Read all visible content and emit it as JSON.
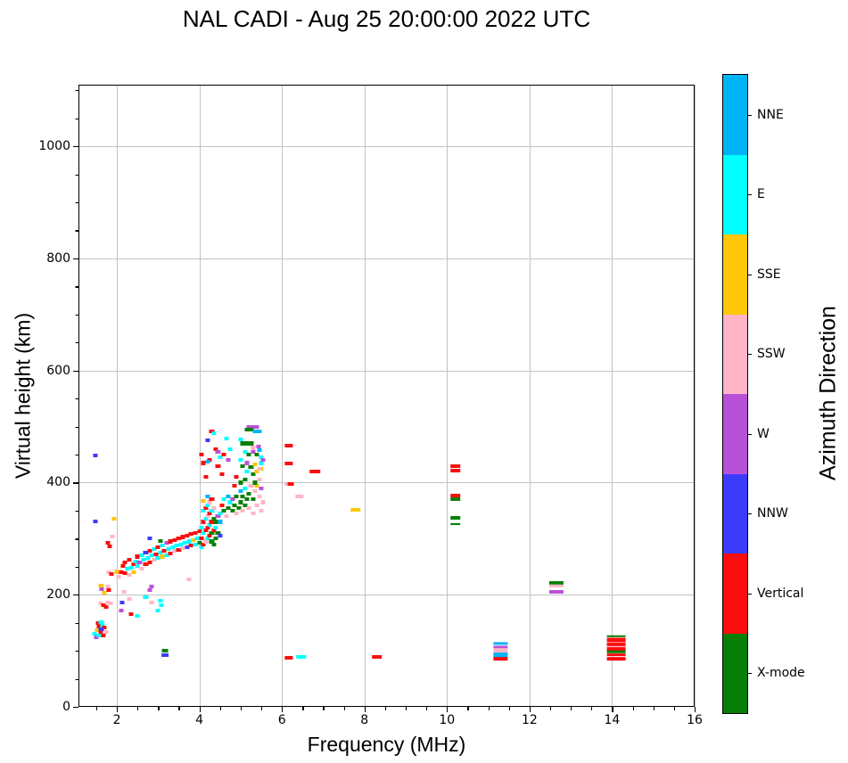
{
  "chart_data": {
    "type": "scatter",
    "title": "NAL CADI - Aug 25 20:00:00 2022 UTC",
    "xlabel": "Frequency (MHz)",
    "ylabel": "Virtual height (km)",
    "xlim": [
      1.07,
      16
    ],
    "ylim": [
      0,
      1110
    ],
    "xticks": [
      2,
      4,
      6,
      8,
      10,
      12,
      14,
      16
    ],
    "yticks": [
      0,
      200,
      400,
      600,
      800,
      1000
    ],
    "x_minor_step": 0.5,
    "y_minor_step": 50,
    "grid": true,
    "grid_color": "#c3c3c3",
    "point_default_w_mhz": 0.11,
    "point_default_h_km": 6.5,
    "colorbar": {
      "label": "Azimuth Direction",
      "categories": [
        {
          "key": "NNE",
          "label": "NNE",
          "color": "#00B3F6"
        },
        {
          "key": "E",
          "label": "E",
          "color": "#00FFFF"
        },
        {
          "key": "SSE",
          "label": "SSE",
          "color": "#FFC60A"
        },
        {
          "key": "SSW",
          "label": "SSW",
          "color": "#FFB5C5"
        },
        {
          "key": "W",
          "label": "W",
          "color": "#B951D8"
        },
        {
          "key": "NNW",
          "label": "NNW",
          "color": "#3B3BFA"
        },
        {
          "key": "V",
          "label": "Vertical",
          "color": "#F90D0D"
        },
        {
          "key": "X",
          "label": "X-mode",
          "color": "#077F07"
        }
      ]
    },
    "points": [
      [
        1.48,
        448,
        "NNW"
      ],
      [
        1.48,
        331,
        "NNW"
      ],
      [
        1.93,
        336,
        "SSE"
      ],
      [
        1.78,
        293,
        "V"
      ],
      [
        1.83,
        286,
        "V"
      ],
      [
        1.9,
        304,
        "SSW"
      ],
      [
        1.8,
        240,
        "SSW"
      ],
      [
        1.86,
        237,
        "V"
      ],
      [
        2.0,
        241,
        "SSE"
      ],
      [
        1.55,
        149,
        "V"
      ],
      [
        1.57,
        143,
        "V"
      ],
      [
        1.65,
        144,
        "E"
      ],
      [
        1.52,
        137,
        "SSE"
      ],
      [
        1.6,
        133,
        "V"
      ],
      [
        1.45,
        131,
        "E"
      ],
      [
        1.7,
        141,
        "V"
      ],
      [
        1.73,
        134,
        "SSW"
      ],
      [
        1.5,
        124,
        "W"
      ],
      [
        1.57,
        128,
        "E"
      ],
      [
        1.68,
        127,
        "V"
      ],
      [
        1.62,
        151,
        "E"
      ],
      [
        1.62,
        139,
        "NNW"
      ],
      [
        1.6,
        184,
        "SSW"
      ],
      [
        1.68,
        181,
        "V"
      ],
      [
        1.73,
        178,
        "V"
      ],
      [
        1.85,
        184,
        "SSW"
      ],
      [
        1.78,
        186,
        "SSW"
      ],
      [
        1.78,
        214,
        "SSW"
      ],
      [
        1.8,
        208,
        "V"
      ],
      [
        1.7,
        203,
        "SSE"
      ],
      [
        1.62,
        217,
        "SSE"
      ],
      [
        1.63,
        210,
        "W"
      ],
      [
        2.13,
        186,
        "NNW"
      ],
      [
        2.1,
        172,
        "W"
      ],
      [
        2.17,
        205,
        "SSW"
      ],
      [
        2.35,
        165,
        "V"
      ],
      [
        2.5,
        163,
        "E"
      ],
      [
        2.7,
        195,
        "E"
      ],
      [
        2.85,
        186,
        "SSW"
      ],
      [
        3.05,
        190,
        "E"
      ],
      [
        3.08,
        181,
        "E"
      ],
      [
        3.0,
        172,
        "E"
      ],
      [
        2.3,
        193,
        "SSW"
      ],
      [
        2.85,
        215,
        "W"
      ],
      [
        2.8,
        209,
        "W"
      ],
      [
        3.75,
        228,
        "SSW"
      ],
      [
        3.17,
        100,
        "X",
        0.15
      ],
      [
        3.17,
        92,
        "NNW",
        0.17
      ],
      [
        2.05,
        232,
        "SSW"
      ],
      [
        2.1,
        240,
        "V"
      ],
      [
        2.15,
        252,
        "V"
      ],
      [
        2.2,
        238,
        "V"
      ],
      [
        2.2,
        258,
        "V"
      ],
      [
        2.25,
        247,
        "E"
      ],
      [
        2.3,
        235,
        "SSW"
      ],
      [
        2.3,
        262,
        "V"
      ],
      [
        2.35,
        248,
        "E"
      ],
      [
        2.4,
        255,
        "V"
      ],
      [
        2.4,
        240,
        "SSE"
      ],
      [
        2.45,
        260,
        "E"
      ],
      [
        2.5,
        252,
        "E"
      ],
      [
        2.5,
        268,
        "V"
      ],
      [
        2.55,
        258,
        "W"
      ],
      [
        2.6,
        247,
        "SSW"
      ],
      [
        2.6,
        270,
        "E"
      ],
      [
        2.65,
        262,
        "E"
      ],
      [
        2.7,
        255,
        "V"
      ],
      [
        2.7,
        275,
        "NNW"
      ],
      [
        2.75,
        265,
        "E"
      ],
      [
        2.8,
        258,
        "V"
      ],
      [
        2.8,
        278,
        "V"
      ],
      [
        2.8,
        300,
        "NNW"
      ],
      [
        2.85,
        270,
        "E"
      ],
      [
        2.9,
        262,
        "SSW"
      ],
      [
        2.9,
        282,
        "E"
      ],
      [
        2.95,
        272,
        "V"
      ],
      [
        3.0,
        265,
        "E"
      ],
      [
        3.0,
        285,
        "V"
      ],
      [
        3.05,
        296,
        "X"
      ],
      [
        3.05,
        275,
        "E"
      ],
      [
        3.1,
        268,
        "SSE"
      ],
      [
        3.1,
        288,
        "E"
      ],
      [
        3.15,
        278,
        "V"
      ],
      [
        3.2,
        270,
        "E"
      ],
      [
        3.2,
        292,
        "W"
      ],
      [
        3.25,
        282,
        "E"
      ],
      [
        3.3,
        274,
        "V"
      ],
      [
        3.3,
        295,
        "V"
      ],
      [
        3.35,
        285,
        "E"
      ],
      [
        3.4,
        278,
        "SSW"
      ],
      [
        3.4,
        298,
        "V"
      ],
      [
        3.45,
        288,
        "E"
      ],
      [
        3.5,
        280,
        "V"
      ],
      [
        3.5,
        300,
        "V"
      ],
      [
        3.55,
        290,
        "E"
      ],
      [
        3.6,
        283,
        "SSW"
      ],
      [
        3.6,
        303,
        "V"
      ],
      [
        3.65,
        293,
        "E"
      ],
      [
        3.7,
        285,
        "NNW"
      ],
      [
        3.7,
        305,
        "V"
      ],
      [
        3.75,
        295,
        "E"
      ],
      [
        3.8,
        288,
        "V"
      ],
      [
        3.8,
        308,
        "V"
      ],
      [
        3.85,
        298,
        "SSE"
      ],
      [
        3.9,
        290,
        "E"
      ],
      [
        3.9,
        310,
        "V"
      ],
      [
        3.95,
        300,
        "E"
      ],
      [
        4.0,
        293,
        "X"
      ],
      [
        4.0,
        313,
        "V"
      ],
      [
        4.05,
        285,
        "E"
      ],
      [
        4.05,
        300,
        "V"
      ],
      [
        4.05,
        320,
        "E"
      ],
      [
        4.1,
        290,
        "V"
      ],
      [
        4.1,
        310,
        "E"
      ],
      [
        4.1,
        330,
        "V"
      ],
      [
        4.1,
        350,
        "E"
      ],
      [
        4.15,
        295,
        "SSW"
      ],
      [
        4.15,
        315,
        "V"
      ],
      [
        4.15,
        335,
        "E"
      ],
      [
        4.15,
        355,
        "V"
      ],
      [
        4.2,
        300,
        "E"
      ],
      [
        4.2,
        320,
        "V"
      ],
      [
        4.2,
        340,
        "SSW"
      ],
      [
        4.2,
        360,
        "E"
      ],
      [
        4.25,
        305,
        "V"
      ],
      [
        4.25,
        325,
        "E"
      ],
      [
        4.25,
        345,
        "V"
      ],
      [
        4.25,
        365,
        "SSW"
      ],
      [
        4.3,
        310,
        "X"
      ],
      [
        4.3,
        330,
        "V"
      ],
      [
        4.3,
        350,
        "E"
      ],
      [
        4.3,
        370,
        "V"
      ],
      [
        4.35,
        315,
        "V"
      ],
      [
        4.35,
        335,
        "X"
      ],
      [
        4.35,
        355,
        "SSW"
      ],
      [
        4.2,
        375,
        "NNE"
      ],
      [
        4.1,
        368,
        "SSE"
      ],
      [
        4.3,
        295,
        "X"
      ],
      [
        4.4,
        300,
        "X"
      ],
      [
        4.45,
        310,
        "X"
      ],
      [
        4.5,
        305,
        "NNW"
      ],
      [
        4.4,
        330,
        "X"
      ],
      [
        4.45,
        340,
        "W"
      ],
      [
        4.5,
        330,
        "NNE"
      ],
      [
        4.35,
        290,
        "X"
      ],
      [
        4.4,
        320,
        "E"
      ],
      [
        4.5,
        345,
        "E"
      ],
      [
        4.55,
        360,
        "V"
      ],
      [
        4.6,
        350,
        "X"
      ],
      [
        4.6,
        370,
        "E"
      ],
      [
        4.65,
        340,
        "SSW"
      ],
      [
        4.7,
        355,
        "X"
      ],
      [
        4.7,
        375,
        "NNE"
      ],
      [
        4.75,
        365,
        "E"
      ],
      [
        4.8,
        350,
        "X"
      ],
      [
        4.8,
        370,
        "W"
      ],
      [
        4.85,
        360,
        "X"
      ],
      [
        4.9,
        345,
        "SSW"
      ],
      [
        4.9,
        375,
        "X"
      ],
      [
        4.95,
        355,
        "X"
      ],
      [
        5.0,
        365,
        "X"
      ],
      [
        5.0,
        385,
        "NNE"
      ],
      [
        5.05,
        350,
        "SSW"
      ],
      [
        5.05,
        375,
        "X"
      ],
      [
        5.1,
        360,
        "X"
      ],
      [
        5.1,
        390,
        "E"
      ],
      [
        5.15,
        370,
        "X"
      ],
      [
        5.2,
        355,
        "SSW"
      ],
      [
        5.2,
        380,
        "X"
      ],
      [
        5.25,
        395,
        "SSW"
      ],
      [
        5.3,
        345,
        "SSW"
      ],
      [
        5.3,
        370,
        "X"
      ],
      [
        5.35,
        385,
        "SSW"
      ],
      [
        5.4,
        360,
        "SSW"
      ],
      [
        5.4,
        395,
        "SSE"
      ],
      [
        5.45,
        375,
        "SSW"
      ],
      [
        5.5,
        350,
        "SSW"
      ],
      [
        5.5,
        390,
        "W"
      ],
      [
        5.55,
        365,
        "SSW"
      ],
      [
        5.3,
        415,
        "X"
      ],
      [
        5.35,
        400,
        "X"
      ],
      [
        5.4,
        420,
        "SSE"
      ],
      [
        5.45,
        405,
        "SSW"
      ],
      [
        5.5,
        425,
        "SSE"
      ],
      [
        5.1,
        405,
        "X"
      ],
      [
        5.15,
        420,
        "E"
      ],
      [
        5.0,
        400,
        "X"
      ],
      [
        4.9,
        410,
        "V"
      ],
      [
        4.85,
        395,
        "V"
      ],
      [
        4.05,
        450,
        "V"
      ],
      [
        4.1,
        435,
        "V"
      ],
      [
        4.2,
        475,
        "NNW"
      ],
      [
        4.15,
        410,
        "V"
      ],
      [
        4.25,
        440,
        "V"
      ],
      [
        4.3,
        492,
        "V"
      ],
      [
        4.35,
        488,
        "E"
      ],
      [
        4.4,
        460,
        "V"
      ],
      [
        4.45,
        430,
        "V"
      ],
      [
        4.5,
        445,
        "E"
      ],
      [
        4.55,
        415,
        "V"
      ],
      [
        4.6,
        450,
        "V"
      ],
      [
        4.65,
        478,
        "E"
      ],
      [
        4.7,
        440,
        "W"
      ],
      [
        4.75,
        460,
        "E"
      ],
      [
        4.2,
        438,
        "NNE"
      ],
      [
        4.45,
        455,
        "W"
      ],
      [
        5.2,
        499,
        "W"
      ],
      [
        5.3,
        499,
        "W"
      ],
      [
        5.4,
        499,
        "W"
      ],
      [
        5.15,
        494,
        "X"
      ],
      [
        5.25,
        494,
        "X"
      ],
      [
        5.35,
        491,
        "NNE"
      ],
      [
        5.45,
        491,
        "NNE"
      ],
      [
        5.0,
        477,
        "E"
      ],
      [
        5.05,
        470,
        "X"
      ],
      [
        5.15,
        470,
        "X"
      ],
      [
        5.25,
        470,
        "X"
      ],
      [
        5.3,
        462,
        "SSW"
      ],
      [
        5.43,
        465,
        "W"
      ],
      [
        5.1,
        455,
        "E"
      ],
      [
        5.2,
        450,
        "X"
      ],
      [
        5.3,
        455,
        "W"
      ],
      [
        5.4,
        450,
        "X"
      ],
      [
        5.5,
        445,
        "E"
      ],
      [
        5.45,
        458,
        "NNE"
      ],
      [
        5.0,
        440,
        "E"
      ],
      [
        5.05,
        430,
        "X"
      ],
      [
        5.15,
        435,
        "W"
      ],
      [
        5.25,
        428,
        "X"
      ],
      [
        5.35,
        432,
        "SSE"
      ],
      [
        5.45,
        425,
        "SSW"
      ],
      [
        5.5,
        435,
        "E"
      ],
      [
        5.55,
        440,
        "W"
      ],
      [
        6.17,
        466,
        "V",
        0.2
      ],
      [
        6.17,
        434,
        "V",
        0.2
      ],
      [
        6.8,
        420,
        "V",
        0.25
      ],
      [
        6.12,
        398,
        "SSW",
        0.12
      ],
      [
        6.22,
        398,
        "V",
        0.15
      ],
      [
        6.43,
        376,
        "SSW",
        0.2
      ],
      [
        7.78,
        352,
        "SSE",
        0.25
      ],
      [
        6.17,
        88,
        "V",
        0.2
      ],
      [
        6.47,
        89,
        "E",
        0.25
      ],
      [
        8.3,
        89,
        "V",
        0.25
      ],
      [
        10.2,
        430,
        "V",
        0.25
      ],
      [
        10.2,
        422,
        "V",
        0.25
      ],
      [
        10.2,
        377,
        "V",
        0.25
      ],
      [
        10.2,
        370,
        "X",
        0.25
      ],
      [
        10.2,
        337,
        "X",
        0.25
      ],
      [
        10.2,
        326,
        "X",
        0.25,
        3
      ],
      [
        11.3,
        113,
        "NNE",
        0.33,
        5
      ],
      [
        11.3,
        107,
        "W",
        0.33,
        5
      ],
      [
        11.3,
        100,
        "SSW",
        0.33,
        9
      ],
      [
        11.3,
        92,
        "NNE",
        0.33,
        9
      ],
      [
        11.3,
        86,
        "V",
        0.33,
        6
      ],
      [
        12.65,
        221,
        "X",
        0.35
      ],
      [
        12.65,
        216,
        "SSW",
        0.35,
        4
      ],
      [
        12.65,
        205,
        "W",
        0.35
      ],
      [
        14.1,
        126,
        "X",
        0.45,
        4
      ],
      [
        14.1,
        119,
        "V",
        0.45,
        8
      ],
      [
        14.1,
        111,
        "V",
        0.45,
        6
      ],
      [
        14.1,
        107,
        "SSW",
        0.45,
        4
      ],
      [
        14.1,
        103,
        "V",
        0.45,
        6
      ],
      [
        14.1,
        98,
        "X",
        0.45,
        4
      ],
      [
        14.1,
        93,
        "V",
        0.45,
        6
      ],
      [
        14.1,
        86,
        "V",
        0.45,
        6
      ]
    ]
  }
}
